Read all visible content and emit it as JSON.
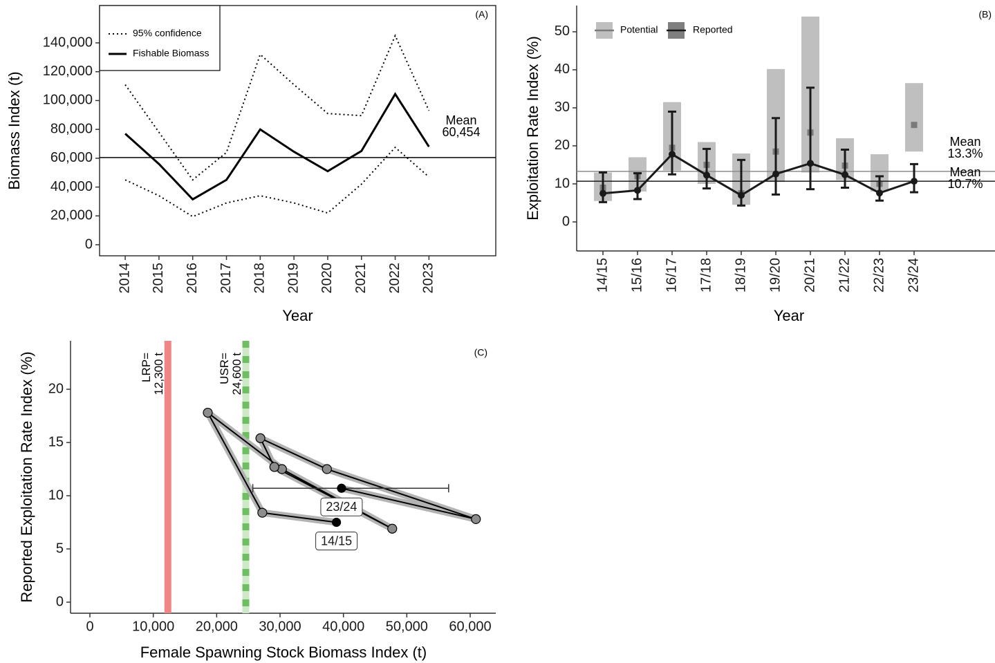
{
  "chart_data": [
    {
      "type": "line",
      "title": "(A)",
      "xlabel": "Year",
      "ylabel": "Biomass Index (t)",
      "x": [
        2014,
        2015,
        2016,
        2017,
        2018,
        2019,
        2020,
        2021,
        2022,
        2023
      ],
      "xlim": [
        2013.24,
        2024.98
      ],
      "xticks": [
        2014,
        2015,
        2016,
        2017,
        2018,
        2019,
        2020,
        2021,
        2022,
        2023
      ],
      "ylim": [
        -7670,
        165890
      ],
      "yticks": [
        0,
        {
          "value": 20000,
          "label": "20,000"
        },
        {
          "value": 40000,
          "label": "40,000"
        },
        {
          "value": 60000,
          "label": "60,000"
        },
        {
          "value": 80000,
          "label": "80,000"
        },
        {
          "value": 100000,
          "label": "100,000"
        },
        {
          "value": 120000,
          "label": "120,000"
        },
        {
          "value": 140000,
          "label": "140,000"
        }
      ],
      "series": [
        {
          "name": "95% confidence",
          "style": "dotted",
          "color": "#000000",
          "upper": [
            111000,
            78000,
            45000,
            64000,
            132000,
            111000,
            91000,
            89500,
            145000,
            93000
          ],
          "lower": [
            45000,
            34000,
            19500,
            29000,
            34000,
            29000,
            22000,
            42000,
            67500,
            47000
          ]
        },
        {
          "name": "Fishable Biomass",
          "style": "solid",
          "color": "#000000",
          "values": [
            77000,
            56000,
            31500,
            45000,
            80000,
            64500,
            51000,
            65000,
            104500,
            68000
          ]
        }
      ],
      "mean_lines": [
        {
          "name": "Mean",
          "value": 60454,
          "value_label": "60,454",
          "color": "#000000"
        }
      ]
    },
    {
      "type": "range",
      "title": "(B)",
      "xlabel": "Year",
      "ylabel": "Exploitation Rate Index (%)",
      "categories": [
        "14/15",
        "15/16",
        "16/17",
        "17/18",
        "18/19",
        "19/20",
        "20/21",
        "21/22",
        "22/23",
        "23/24"
      ],
      "ylim": [
        -7.64,
        56.9
      ],
      "yticks": [
        0,
        10,
        20,
        30,
        40,
        50
      ],
      "series": [
        {
          "name": "Potential",
          "color": "#bfbfbf",
          "point_color": "#7a7a7a",
          "values": [
            9,
            12,
            19.5,
            15,
            7.5,
            18.5,
            23.5,
            14.8,
            10,
            25.5
          ],
          "low": [
            5.5,
            8,
            13.5,
            10,
            4.5,
            10.5,
            13,
            11,
            8,
            18.5
          ],
          "high": [
            13,
            17,
            31.5,
            21,
            18,
            40.2,
            54,
            22,
            17.8,
            36.5
          ]
        },
        {
          "name": "Reported",
          "color": "#1a1a1a",
          "values": [
            7.5,
            8.3,
            17.8,
            12.3,
            7,
            12.6,
            15.4,
            12.4,
            7.6,
            10.7
          ],
          "low": [
            5.2,
            6,
            12.5,
            8.8,
            4.3,
            7.2,
            8.6,
            9,
            5.6,
            7.8
          ],
          "high": [
            13,
            12.8,
            29,
            19.2,
            16.3,
            27.3,
            35.3,
            19,
            12,
            15.2
          ]
        }
      ],
      "mean_lines": [
        {
          "name": "Mean",
          "value": 13.3,
          "value_label": "13.3%",
          "color": "#8c8c8c"
        },
        {
          "name": "Mean",
          "value": 10.7,
          "value_label": "10.7%",
          "color": "#1a1a1a"
        }
      ]
    },
    {
      "type": "scatter",
      "title": "(C)",
      "xlabel": "Female Spawning Stock Biomass Index (t)",
      "ylabel": "Reported Exploitation Rate Index (%)",
      "x": [
        38900,
        27200,
        18600,
        30300,
        47700,
        29100,
        26900,
        37400,
        60900,
        39700
      ],
      "values": [
        7.5,
        8.4,
        17.8,
        12.5,
        6.9,
        12.7,
        15.4,
        12.5,
        7.8,
        10.7
      ],
      "point_labels": [
        "14/15",
        null,
        null,
        null,
        null,
        null,
        null,
        null,
        null,
        "23/24"
      ],
      "x_low": [
        null,
        null,
        null,
        null,
        null,
        null,
        null,
        null,
        null,
        25700
      ],
      "x_high": [
        null,
        null,
        null,
        null,
        null,
        null,
        null,
        null,
        null,
        56600
      ],
      "color": "#8c8c8c",
      "labelled_color": "#000000",
      "xlim": [
        -3055,
        64036
      ],
      "ylim": [
        -1.04,
        24.55
      ],
      "xticks": [
        0,
        {
          "value": 10000,
          "label": "10,000"
        },
        {
          "value": 20000,
          "label": "20,000"
        },
        {
          "value": 30000,
          "label": "30,000"
        },
        {
          "value": 40000,
          "label": "40,000"
        },
        {
          "value": 50000,
          "label": "50,000"
        },
        {
          "value": 60000,
          "label": "60,000"
        }
      ],
      "yticks": [
        0,
        5,
        10,
        15,
        20
      ],
      "reference_lines": [
        {
          "name": "LRP=",
          "value": 12300,
          "value_label": "12,300 t",
          "color": "#f08585"
        },
        {
          "name": "USR=",
          "value": 24600,
          "value_label": "24,600 t",
          "color": "#cde9c6",
          "dash_color": "#6dbf62"
        }
      ]
    }
  ]
}
